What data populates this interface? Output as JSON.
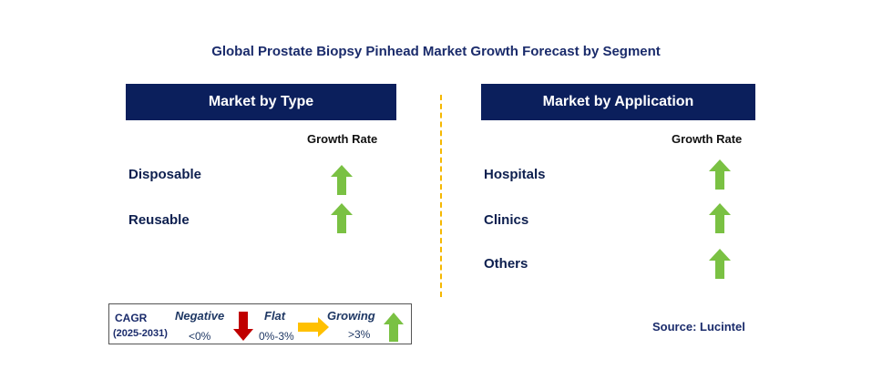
{
  "title": "Global Prostate Biopsy Pinhead Market Growth Forecast by Segment",
  "panels": {
    "type": {
      "header": "Market by Type",
      "growth_label": "Growth Rate",
      "items": [
        {
          "label": "Disposable",
          "trend": "growing"
        },
        {
          "label": "Reusable",
          "trend": "growing"
        }
      ]
    },
    "application": {
      "header": "Market by Application",
      "growth_label": "Growth Rate",
      "items": [
        {
          "label": "Hospitals",
          "trend": "growing"
        },
        {
          "label": "Clinics",
          "trend": "growing"
        },
        {
          "label": "Others",
          "trend": "growing"
        }
      ]
    }
  },
  "legend": {
    "cagr_label": "CAGR",
    "period": "(2025-2031)",
    "negative_label": "Negative",
    "negative_range": "<0%",
    "flat_label": "Flat",
    "flat_range": "0%-3%",
    "growing_label": "Growing",
    "growing_range": ">3%"
  },
  "source": "Source: Lucintel",
  "colors": {
    "header_bg": "#0b1f5c",
    "growing": "#7ac143",
    "negative": "#c00000",
    "flat": "#ffc000",
    "divider": "#f5b800"
  }
}
